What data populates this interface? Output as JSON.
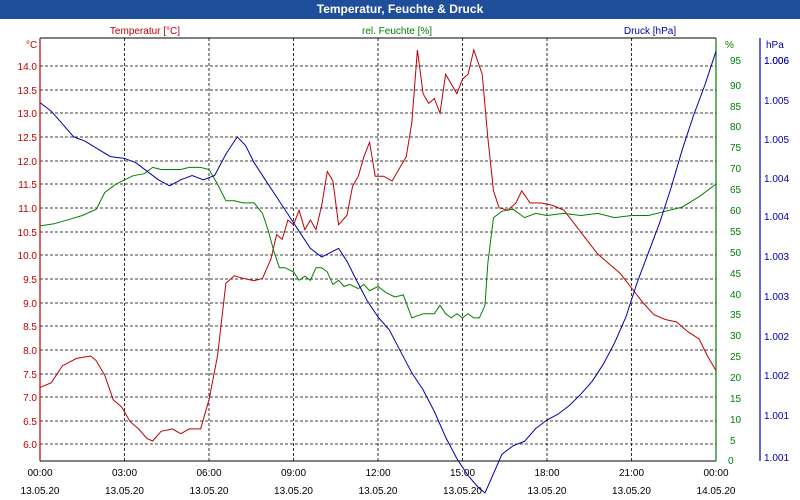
{
  "chart_data": {
    "type": "line",
    "title": "Temperatur, Feuchte & Druck",
    "colors": {
      "temperature": "#c00000",
      "humidity": "#008000",
      "pressure": "#0000b0",
      "title_bg": "#1f4e9a",
      "axis": "#000000",
      "grid": "#000000"
    },
    "x_ticks": [
      {
        "time": "00:00",
        "date": "13.05.20"
      },
      {
        "time": "03:00",
        "date": "13.05.20"
      },
      {
        "time": "06:00",
        "date": "13.05.20"
      },
      {
        "time": "09:00",
        "date": "13.05.20"
      },
      {
        "time": "12:00",
        "date": "13.05.20"
      },
      {
        "time": "15:00",
        "date": "13.05.20"
      },
      {
        "time": "18:00",
        "date": "13.05.20"
      },
      {
        "time": "21:00",
        "date": "13.05.20"
      },
      {
        "time": "00:00",
        "date": "14.05.20"
      }
    ],
    "xlim": [
      0,
      24
    ],
    "series": [
      {
        "name": "Temperatur [°C]",
        "key": "temperature",
        "unit": "°C",
        "ylim": [
          5.7,
          14.5
        ],
        "ticks": [
          "6.0",
          "6.5",
          "7.0",
          "7.5",
          "8.0",
          "8.5",
          "9.0",
          "9.5",
          "10.0",
          "10.5",
          "11.0",
          "11.5",
          "12.0",
          "12.5",
          "13.0",
          "13.5",
          "14.0"
        ],
        "points": [
          [
            0,
            7.15
          ],
          [
            0.4,
            7.25
          ],
          [
            0.8,
            7.6
          ],
          [
            1.3,
            7.75
          ],
          [
            1.8,
            7.8
          ],
          [
            2.0,
            7.7
          ],
          [
            2.3,
            7.4
          ],
          [
            2.6,
            6.9
          ],
          [
            2.9,
            6.75
          ],
          [
            3.2,
            6.45
          ],
          [
            3.5,
            6.3
          ],
          [
            3.8,
            6.1
          ],
          [
            4.0,
            6.05
          ],
          [
            4.3,
            6.25
          ],
          [
            4.7,
            6.3
          ],
          [
            5.0,
            6.2
          ],
          [
            5.3,
            6.3
          ],
          [
            5.7,
            6.3
          ],
          [
            6.0,
            6.9
          ],
          [
            6.3,
            7.8
          ],
          [
            6.6,
            9.3
          ],
          [
            6.9,
            9.45
          ],
          [
            7.2,
            9.4
          ],
          [
            7.6,
            9.35
          ],
          [
            7.9,
            9.4
          ],
          [
            8.2,
            9.8
          ],
          [
            8.4,
            10.3
          ],
          [
            8.6,
            10.2
          ],
          [
            8.8,
            10.6
          ],
          [
            9.0,
            10.5
          ],
          [
            9.2,
            10.8
          ],
          [
            9.4,
            10.4
          ],
          [
            9.6,
            10.6
          ],
          [
            9.8,
            10.4
          ],
          [
            10.0,
            10.9
          ],
          [
            10.2,
            11.6
          ],
          [
            10.4,
            11.4
          ],
          [
            10.6,
            10.5
          ],
          [
            10.9,
            10.7
          ],
          [
            11.1,
            11.3
          ],
          [
            11.3,
            11.5
          ],
          [
            11.5,
            11.9
          ],
          [
            11.7,
            12.2
          ],
          [
            11.9,
            11.5
          ],
          [
            12.2,
            11.5
          ],
          [
            12.5,
            11.4
          ],
          [
            12.8,
            11.7
          ],
          [
            13.0,
            11.9
          ],
          [
            13.2,
            12.6
          ],
          [
            13.4,
            14.1
          ],
          [
            13.6,
            13.2
          ],
          [
            13.8,
            13.0
          ],
          [
            14.0,
            13.1
          ],
          [
            14.2,
            12.8
          ],
          [
            14.4,
            13.6
          ],
          [
            14.6,
            13.4
          ],
          [
            14.8,
            13.2
          ],
          [
            15.0,
            13.5
          ],
          [
            15.2,
            13.6
          ],
          [
            15.4,
            14.1
          ],
          [
            15.7,
            13.6
          ],
          [
            15.9,
            12.3
          ],
          [
            16.1,
            11.2
          ],
          [
            16.3,
            10.85
          ],
          [
            16.6,
            10.8
          ],
          [
            16.9,
            10.95
          ],
          [
            17.1,
            11.2
          ],
          [
            17.4,
            10.95
          ],
          [
            17.8,
            10.95
          ],
          [
            18.2,
            10.9
          ],
          [
            18.6,
            10.8
          ],
          [
            19.0,
            10.5
          ],
          [
            19.4,
            10.2
          ],
          [
            19.8,
            9.9
          ],
          [
            20.2,
            9.7
          ],
          [
            20.6,
            9.5
          ],
          [
            21.0,
            9.2
          ],
          [
            21.4,
            8.9
          ],
          [
            21.8,
            8.65
          ],
          [
            22.2,
            8.55
          ],
          [
            22.6,
            8.5
          ],
          [
            23.0,
            8.3
          ],
          [
            23.4,
            8.15
          ],
          [
            23.7,
            7.8
          ],
          [
            24.0,
            7.5
          ]
        ]
      },
      {
        "name": "rel. Feuchte [%]",
        "key": "humidity",
        "unit": "%",
        "ylim": [
          0,
          100
        ],
        "ticks": [
          "0",
          "5",
          "10",
          "15",
          "20",
          "25",
          "30",
          "35",
          "40",
          "45",
          "50",
          "55",
          "60",
          "65",
          "70",
          "75",
          "80",
          "85",
          "90",
          "95",
          "%"
        ],
        "points": [
          [
            0,
            56
          ],
          [
            0.5,
            56.5
          ],
          [
            1.0,
            57.5
          ],
          [
            1.5,
            58.5
          ],
          [
            2.0,
            60
          ],
          [
            2.3,
            64
          ],
          [
            2.7,
            66
          ],
          [
            3.0,
            67
          ],
          [
            3.3,
            68
          ],
          [
            3.7,
            68.5
          ],
          [
            4.0,
            70
          ],
          [
            4.3,
            69.5
          ],
          [
            4.7,
            69.5
          ],
          [
            5.0,
            69.5
          ],
          [
            5.3,
            70
          ],
          [
            5.7,
            70
          ],
          [
            6.0,
            69.5
          ],
          [
            6.3,
            66
          ],
          [
            6.6,
            62
          ],
          [
            6.9,
            62
          ],
          [
            7.2,
            61.5
          ],
          [
            7.6,
            61.5
          ],
          [
            7.9,
            59
          ],
          [
            8.1,
            55
          ],
          [
            8.3,
            50
          ],
          [
            8.5,
            46
          ],
          [
            8.7,
            46
          ],
          [
            9.0,
            45
          ],
          [
            9.2,
            43
          ],
          [
            9.4,
            44
          ],
          [
            9.6,
            43
          ],
          [
            9.8,
            46
          ],
          [
            10.0,
            46
          ],
          [
            10.2,
            45
          ],
          [
            10.4,
            42
          ],
          [
            10.6,
            43
          ],
          [
            10.8,
            41.5
          ],
          [
            11.0,
            42
          ],
          [
            11.3,
            41
          ],
          [
            11.5,
            42
          ],
          [
            11.7,
            40.5
          ],
          [
            12.0,
            41.5
          ],
          [
            12.3,
            40
          ],
          [
            12.6,
            39
          ],
          [
            12.9,
            39.5
          ],
          [
            13.2,
            34
          ],
          [
            13.6,
            35
          ],
          [
            14.0,
            35
          ],
          [
            14.2,
            37
          ],
          [
            14.4,
            35
          ],
          [
            14.6,
            34
          ],
          [
            14.8,
            35
          ],
          [
            15.0,
            34
          ],
          [
            15.2,
            35
          ],
          [
            15.4,
            34
          ],
          [
            15.6,
            34
          ],
          [
            15.8,
            37
          ],
          [
            15.9,
            47
          ],
          [
            16.1,
            58
          ],
          [
            16.4,
            59.5
          ],
          [
            16.8,
            60
          ],
          [
            17.2,
            58
          ],
          [
            17.6,
            59
          ],
          [
            18.0,
            58.5
          ],
          [
            18.6,
            59
          ],
          [
            19.2,
            58.5
          ],
          [
            19.8,
            59
          ],
          [
            20.4,
            58
          ],
          [
            21.0,
            58.5
          ],
          [
            21.6,
            58.5
          ],
          [
            22.2,
            59.5
          ],
          [
            22.8,
            60.5
          ],
          [
            23.4,
            63
          ],
          [
            24.0,
            66
          ]
        ]
      },
      {
        "name": "Druck [hPa]",
        "key": "pressure",
        "unit": "hPa",
        "ylim": [
          1000.95,
          1006.15
        ],
        "ticks": [
          "1.001",
          "1.001",
          "1.002",
          "1.002",
          "1.003",
          "1.003",
          "1.004",
          "1.004",
          "1.005",
          "1.005",
          "1.006",
          "1.006",
          "hPa"
        ],
        "points": [
          [
            0,
            1005.35
          ],
          [
            0.4,
            1005.25
          ],
          [
            0.8,
            1005.1
          ],
          [
            1.2,
            1004.95
          ],
          [
            1.6,
            1004.9
          ],
          [
            2.0,
            1004.82
          ],
          [
            2.5,
            1004.72
          ],
          [
            3.0,
            1004.7
          ],
          [
            3.4,
            1004.65
          ],
          [
            3.8,
            1004.55
          ],
          [
            4.2,
            1004.45
          ],
          [
            4.6,
            1004.38
          ],
          [
            5.0,
            1004.45
          ],
          [
            5.4,
            1004.5
          ],
          [
            5.8,
            1004.45
          ],
          [
            6.2,
            1004.5
          ],
          [
            6.6,
            1004.75
          ],
          [
            7.0,
            1004.95
          ],
          [
            7.3,
            1004.85
          ],
          [
            7.6,
            1004.65
          ],
          [
            8.0,
            1004.45
          ],
          [
            8.4,
            1004.25
          ],
          [
            8.8,
            1004.05
          ],
          [
            9.2,
            1003.85
          ],
          [
            9.6,
            1003.65
          ],
          [
            10.0,
            1003.55
          ],
          [
            10.3,
            1003.6
          ],
          [
            10.6,
            1003.65
          ],
          [
            10.9,
            1003.5
          ],
          [
            11.2,
            1003.3
          ],
          [
            11.6,
            1003.05
          ],
          [
            12.0,
            1002.85
          ],
          [
            12.4,
            1002.7
          ],
          [
            12.8,
            1002.45
          ],
          [
            13.2,
            1002.2
          ],
          [
            13.6,
            1002.0
          ],
          [
            14.0,
            1001.75
          ],
          [
            14.4,
            1001.45
          ],
          [
            14.8,
            1001.2
          ],
          [
            15.2,
            1001.0
          ],
          [
            15.6,
            1000.85
          ],
          [
            15.8,
            1000.8
          ],
          [
            16.0,
            1000.95
          ],
          [
            16.4,
            1001.25
          ],
          [
            16.8,
            1001.35
          ],
          [
            17.2,
            1001.4
          ],
          [
            17.6,
            1001.55
          ],
          [
            18.0,
            1001.65
          ],
          [
            18.4,
            1001.72
          ],
          [
            18.8,
            1001.82
          ],
          [
            19.2,
            1001.95
          ],
          [
            19.6,
            1002.1
          ],
          [
            20.0,
            1002.3
          ],
          [
            20.4,
            1002.55
          ],
          [
            20.8,
            1002.85
          ],
          [
            21.2,
            1003.25
          ],
          [
            21.6,
            1003.6
          ],
          [
            22.0,
            1003.95
          ],
          [
            22.4,
            1004.35
          ],
          [
            22.8,
            1004.8
          ],
          [
            23.2,
            1005.2
          ],
          [
            23.6,
            1005.55
          ],
          [
            24.0,
            1005.95
          ]
        ]
      }
    ]
  }
}
